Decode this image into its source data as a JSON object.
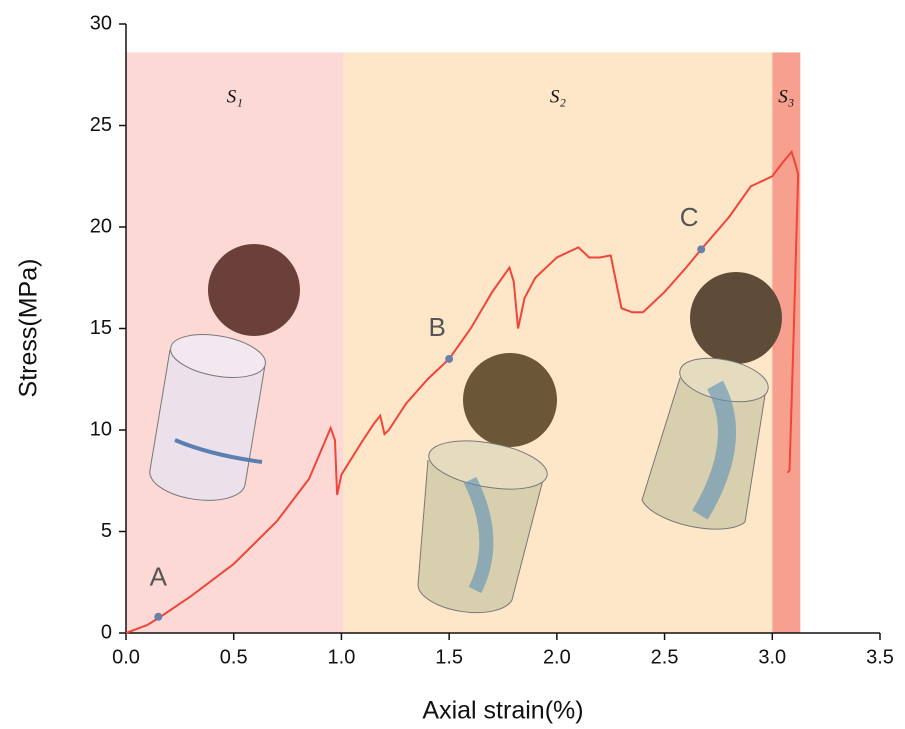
{
  "chart_data": {
    "type": "line",
    "x_label": "Axial strain(%)",
    "y_label": "Stress(MPa)",
    "xlim": [
      0,
      3.5
    ],
    "ylim": [
      0,
      30
    ],
    "xticks": [
      {
        "value": 0,
        "label": "0.0"
      },
      0.5,
      {
        "value": 1,
        "label": "1.0"
      },
      1.5,
      {
        "value": 2,
        "label": "2.0"
      },
      2.5,
      {
        "value": 3,
        "label": "3.0"
      },
      3.5
    ],
    "yticks": [
      0,
      5,
      10,
      15,
      20,
      25,
      30
    ],
    "region_top": 28.6,
    "regions": [
      {
        "label": "S₁",
        "xlim": [
          0,
          1.01
        ],
        "color": "#fdd9d6"
      },
      {
        "label": "S₂",
        "xlim": [
          1.01,
          3.0
        ],
        "color": "#fde7c8"
      },
      {
        "label": "S₃",
        "xlim": [
          3.0,
          3.13
        ],
        "color": "#f7a08f"
      }
    ],
    "series": [
      {
        "color": "#f0453a",
        "x": [
          0,
          0.1,
          0.16,
          0.3,
          0.5,
          0.7,
          0.85,
          0.95,
          0.97,
          0.98,
          1.0,
          1.1,
          1.15,
          1.18,
          1.2,
          1.22,
          1.3,
          1.4,
          1.5,
          1.6,
          1.7,
          1.78,
          1.8,
          1.82,
          1.85,
          1.9,
          2.0,
          2.1,
          2.15,
          2.2,
          2.25,
          2.3,
          2.35,
          2.4,
          2.5,
          2.6,
          2.67,
          2.8,
          2.9,
          3.0,
          3.05,
          3.09,
          3.11,
          3.12,
          3.1,
          3.08,
          3.07
        ],
        "values": [
          0,
          0.4,
          0.8,
          1.8,
          3.4,
          5.5,
          7.6,
          10.1,
          9.5,
          6.8,
          7.8,
          9.5,
          10.3,
          10.7,
          9.8,
          10.0,
          11.3,
          12.5,
          13.5,
          15.0,
          16.8,
          18.0,
          17.3,
          15.0,
          16.5,
          17.5,
          18.5,
          19.0,
          18.5,
          18.5,
          18.6,
          16.0,
          15.8,
          15.8,
          16.8,
          18.0,
          18.9,
          20.5,
          22.0,
          22.5,
          23.2,
          23.7,
          23.0,
          22.6,
          15.0,
          8.0,
          7.9
        ]
      }
    ],
    "points": {
      "color": "#6b7fa8",
      "labels": [
        "A",
        "B",
        "C"
      ],
      "x": [
        0.15,
        1.5,
        2.67
      ],
      "values": [
        0.8,
        13.5,
        18.9
      ]
    }
  }
}
